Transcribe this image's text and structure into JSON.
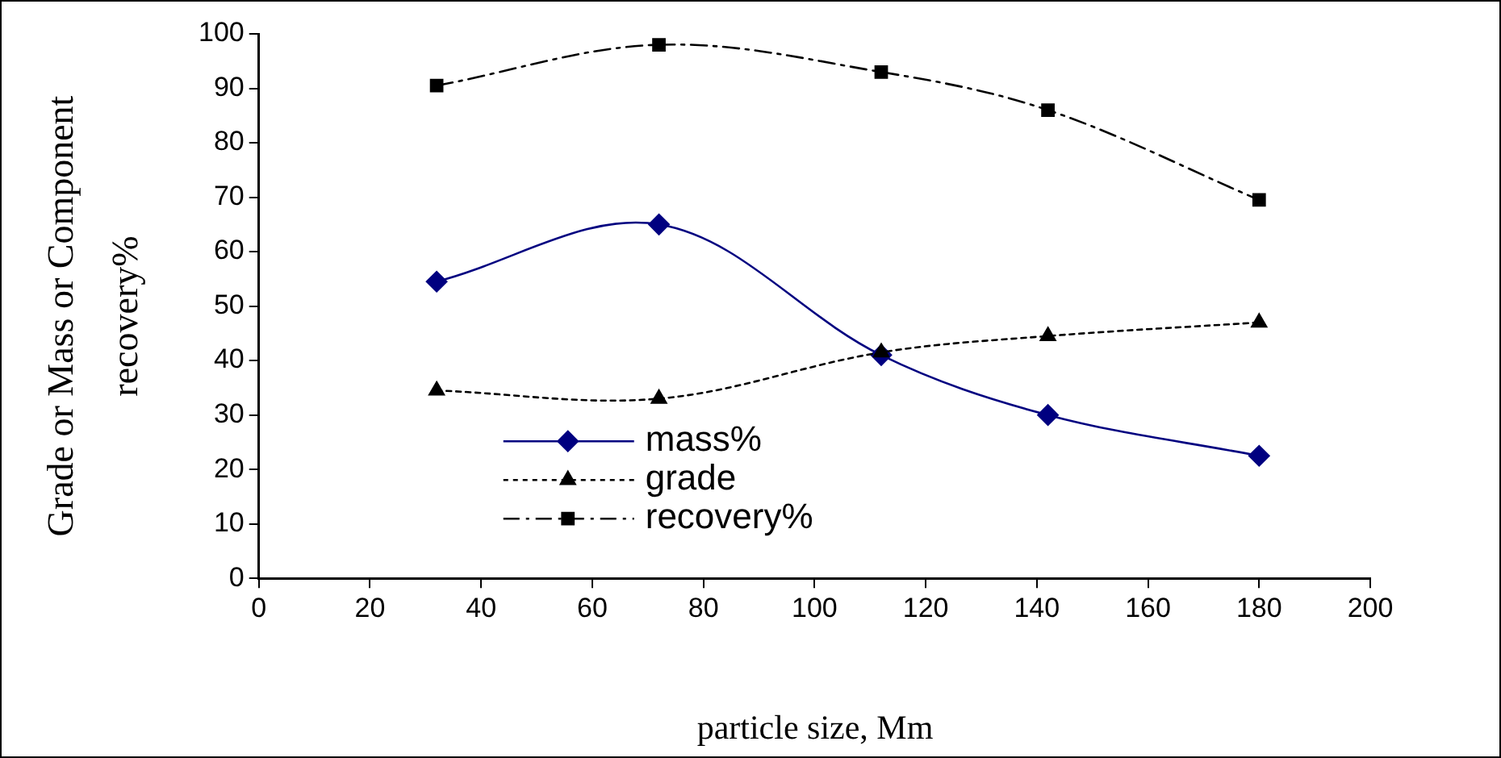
{
  "chart_data": {
    "type": "line",
    "xlabel": "particle size, Mm",
    "ylabel": "Grade or Mass or Component recovery%",
    "x": [
      32,
      72,
      112,
      142,
      180
    ],
    "xlim": [
      0,
      200
    ],
    "xticks": [
      0,
      20,
      40,
      60,
      80,
      100,
      120,
      140,
      160,
      180,
      200
    ],
    "ylim": [
      0,
      100
    ],
    "yticks": [
      0,
      10,
      20,
      30,
      40,
      50,
      60,
      70,
      80,
      90,
      100
    ],
    "grid": false,
    "legend": "bottom left",
    "series": [
      {
        "name": "mass%",
        "color": "#000080",
        "values": [
          54.5,
          65,
          41,
          30,
          22.5
        ],
        "marker": "diamond",
        "line_style": "solid"
      },
      {
        "name": "grade",
        "color": "#000000",
        "values": [
          34.5,
          33,
          41.5,
          44.5,
          47
        ],
        "marker": "triangle",
        "line_style": "dotted"
      },
      {
        "name": "recovery%",
        "color": "#000000",
        "values": [
          90.5,
          98,
          93,
          86,
          69.5
        ],
        "marker": "square",
        "line_style": "dashed"
      }
    ]
  }
}
